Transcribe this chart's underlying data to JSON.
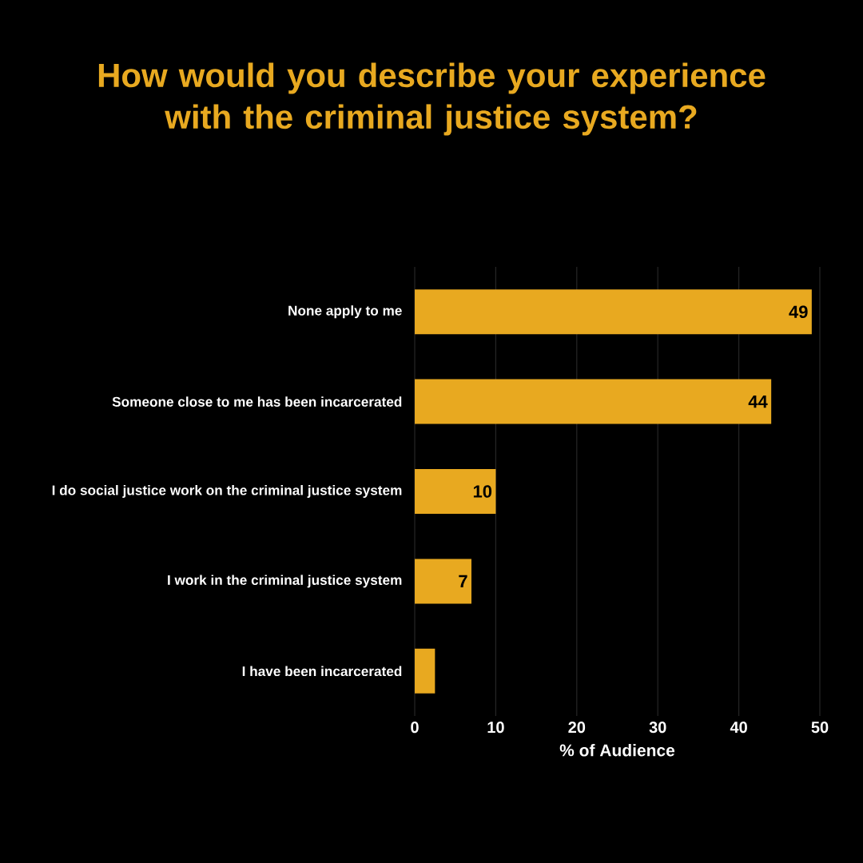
{
  "chart_data": {
    "type": "bar",
    "orientation": "horizontal",
    "title": "How would you describe your experience with the criminal justice system?",
    "xlabel": "% of Audience",
    "categories": [
      "None apply to me",
      "Someone close to me has been incarcerated",
      "I do social justice work on the criminal justice system",
      "I work in the criminal justice system",
      "I have been incarcerated"
    ],
    "values": [
      49,
      44,
      10,
      7,
      2.5
    ],
    "value_labels": [
      "49",
      "44",
      "10",
      "7",
      null
    ],
    "color": "#e8a920",
    "xlim": [
      0,
      50
    ],
    "xticks": [
      0,
      10,
      20,
      30,
      40,
      50
    ],
    "grid": "x"
  }
}
